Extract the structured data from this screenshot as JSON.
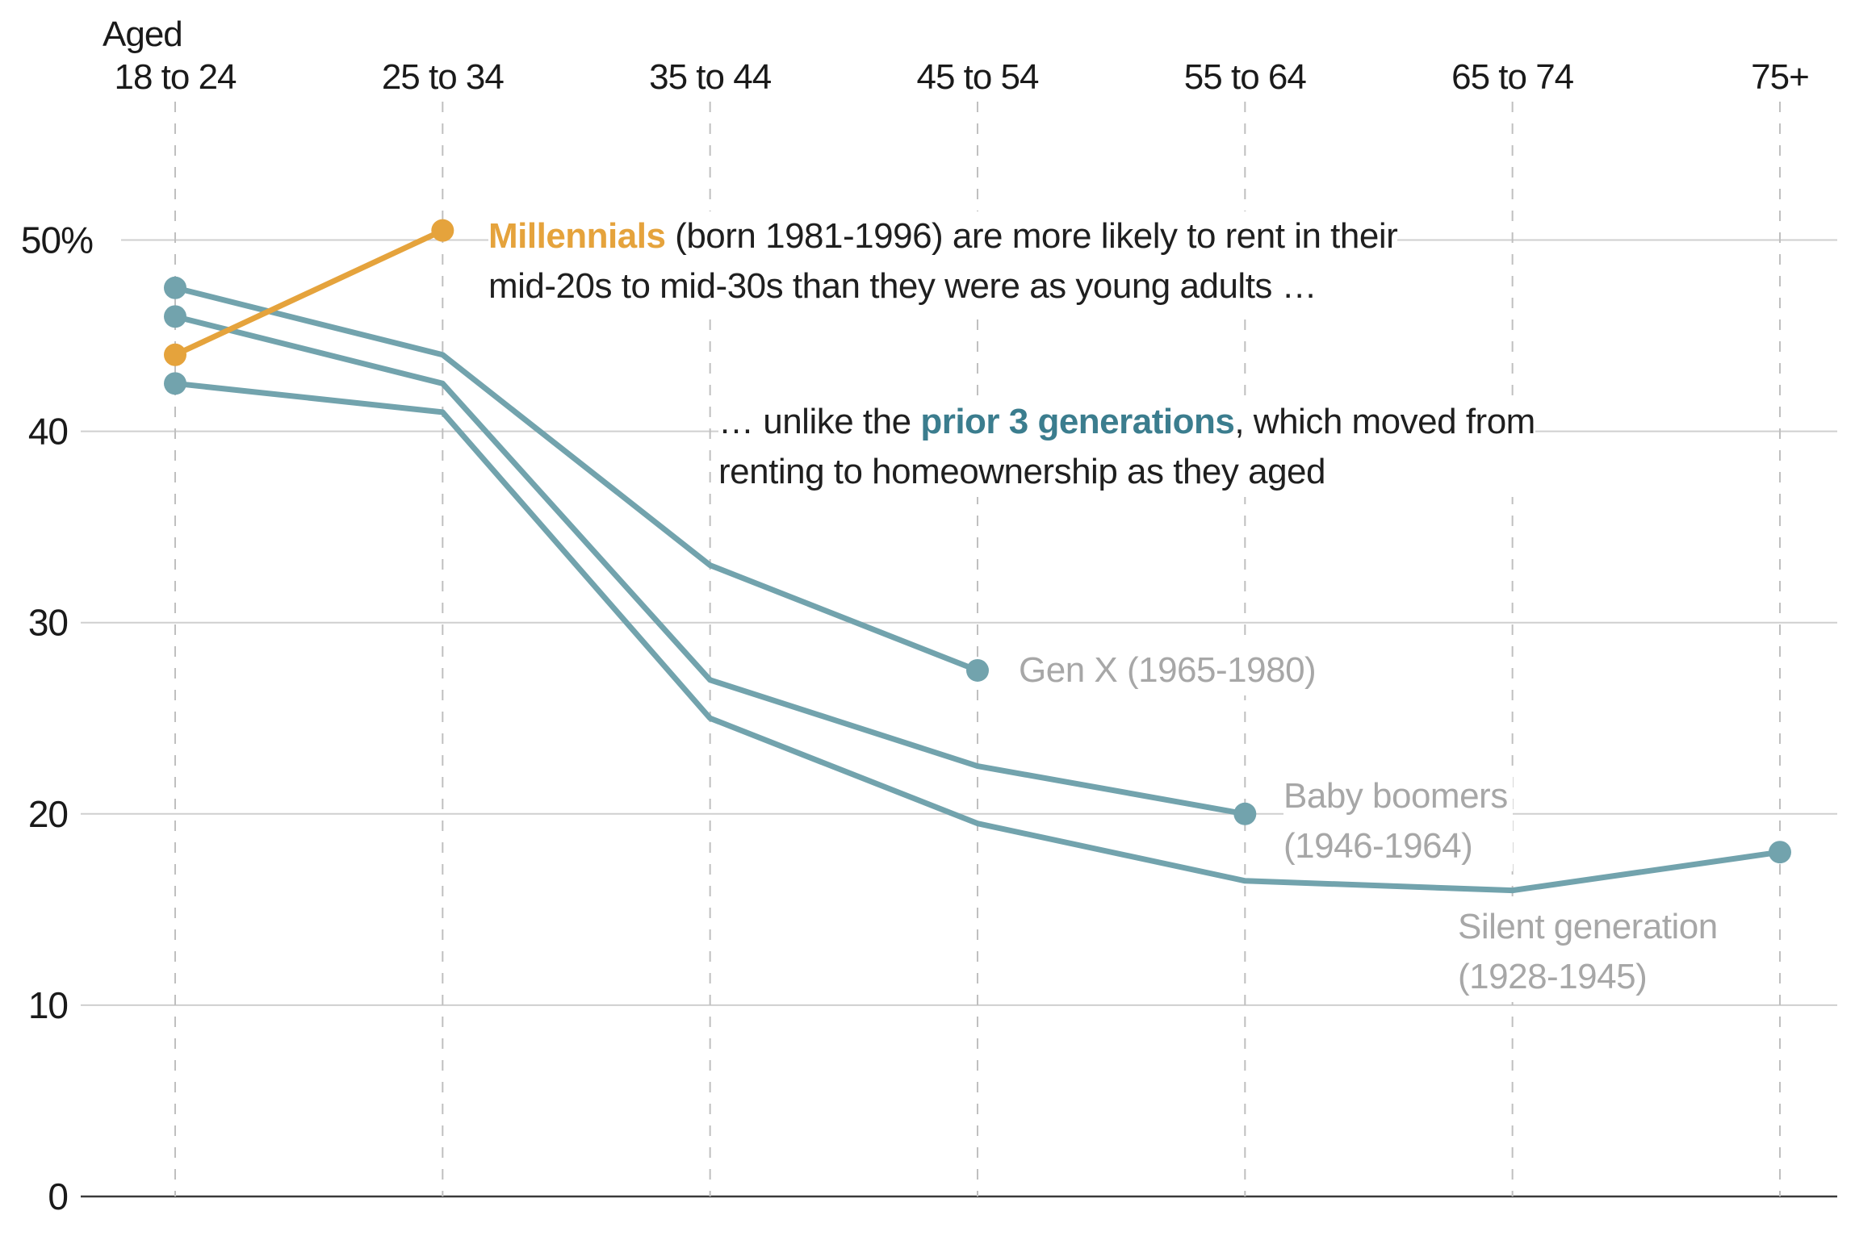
{
  "chart_data": {
    "type": "line",
    "title": "",
    "unit": "%",
    "xlabel": "Aged",
    "ylabel": "",
    "ylim": [
      0,
      55
    ],
    "yticks": [
      0,
      10,
      20,
      30,
      40,
      50
    ],
    "grid": {
      "horizontal": "solid",
      "vertical": "dashed"
    },
    "legend_position": "inline-labels",
    "categories": [
      "18 to 24",
      "25 to 34",
      "35 to 44",
      "45 to 54",
      "55 to 64",
      "65 to 74",
      "75+"
    ],
    "series": [
      {
        "name": "Millennials",
        "birth_years": "born 1981-1996",
        "color": "#E5A33C",
        "values": [
          44,
          50.5,
          null,
          null,
          null,
          null,
          null
        ]
      },
      {
        "name": "Gen X",
        "birth_years": "1965-1980",
        "color": "#72A3AD",
        "values": [
          47.5,
          44,
          33,
          27.5,
          null,
          null,
          null
        ]
      },
      {
        "name": "Baby boomers",
        "birth_years": "1946-1964",
        "color": "#72A3AD",
        "values": [
          46,
          42.5,
          27,
          22.5,
          20,
          null,
          null
        ]
      },
      {
        "name": "Silent generation",
        "birth_years": "1928-1945",
        "color": "#72A3AD",
        "values": [
          42.5,
          41,
          25,
          19.5,
          16.5,
          16,
          18
        ]
      }
    ]
  },
  "axis": {
    "aged_header": "Aged",
    "y_tick_labels": [
      {
        "value": 0,
        "label": "0"
      },
      {
        "value": 10,
        "label": "10"
      },
      {
        "value": 20,
        "label": "20"
      },
      {
        "value": 30,
        "label": "30"
      },
      {
        "value": 40,
        "label": "40"
      },
      {
        "value": 50,
        "label": "50%"
      }
    ]
  },
  "annotations": {
    "millennials": {
      "keyword": "Millennials",
      "line1_rest": " (born 1981-1996) are more likely to rent in their",
      "line2": "mid-20s to mid-30s than they were as young adults …"
    },
    "prior_generations": {
      "line1_pre": "… unlike the ",
      "keyword": "prior 3 generations",
      "line1_post": ", which moved from",
      "line2": "renting to homeownership as they aged"
    }
  },
  "series_labels": {
    "genx": {
      "line1": "Gen X (1965-1980)"
    },
    "boomers": {
      "line1": "Baby boomers",
      "line2": "(1946-1964)"
    },
    "silent": {
      "line1": "Silent generation",
      "line2": "(1928-1945)"
    }
  },
  "colors": {
    "millennial_orange": "#E5A33C",
    "generation_teal": "#72A3AD",
    "teal_keyword_text": "#3B7D8E",
    "orange_keyword_text": "#E5A33C",
    "label_gray": "#A7A7A7",
    "text_dark": "#1F1F1F",
    "axis_text": "#1A1A1A",
    "gridline": "#CFCFCF",
    "zero_line": "#3A3A3A",
    "dashed_guide": "#BFBFBF"
  }
}
